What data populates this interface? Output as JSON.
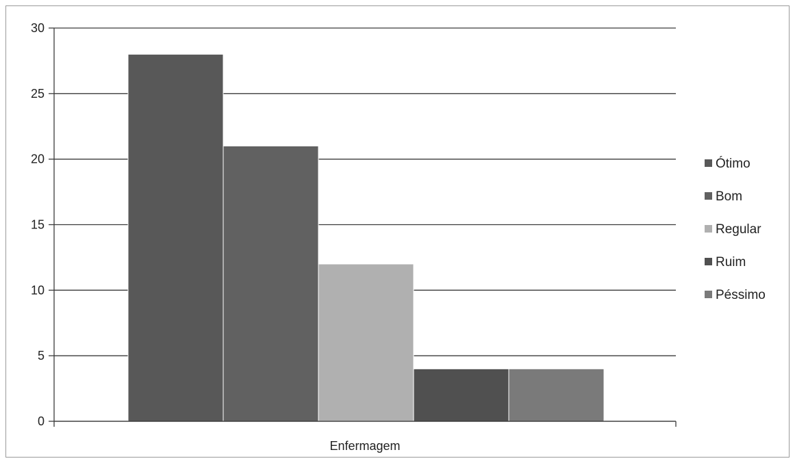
{
  "chart_data": {
    "type": "bar",
    "title": "",
    "xlabel": "",
    "ylabel": "",
    "categories": [
      "Enfermagem"
    ],
    "series": [
      {
        "name": "Ótimo",
        "values": [
          28
        ],
        "color": "#585858"
      },
      {
        "name": "Bom",
        "values": [
          21
        ],
        "color": "#616161"
      },
      {
        "name": "Regular",
        "values": [
          12
        ],
        "color": "#b0b0b0"
      },
      {
        "name": "Ruim",
        "values": [
          4
        ],
        "color": "#505050"
      },
      {
        "name": "Péssimo",
        "values": [
          4
        ],
        "color": "#7a7a7a"
      }
    ],
    "ylim": [
      0,
      30
    ],
    "yticks": [
      0,
      5,
      10,
      15,
      20,
      25,
      30
    ],
    "grid": true,
    "legend_position": "right"
  }
}
